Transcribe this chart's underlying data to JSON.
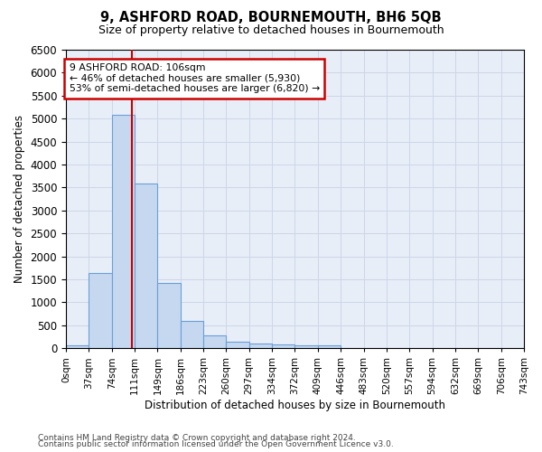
{
  "title": "9, ASHFORD ROAD, BOURNEMOUTH, BH6 5QB",
  "subtitle": "Size of property relative to detached houses in Bournemouth",
  "xlabel": "Distribution of detached houses by size in Bournemouth",
  "ylabel": "Number of detached properties",
  "bar_color": "#c5d8f0",
  "bar_edge_color": "#6a9fd8",
  "bin_labels": [
    "0sqm",
    "37sqm",
    "74sqm",
    "111sqm",
    "149sqm",
    "186sqm",
    "223sqm",
    "260sqm",
    "297sqm",
    "334sqm",
    "372sqm",
    "409sqm",
    "446sqm",
    "483sqm",
    "520sqm",
    "557sqm",
    "594sqm",
    "632sqm",
    "669sqm",
    "706sqm",
    "743sqm"
  ],
  "bar_heights": [
    70,
    1630,
    5080,
    3580,
    1420,
    590,
    290,
    145,
    110,
    75,
    60,
    55,
    0,
    0,
    0,
    0,
    0,
    0,
    0,
    0
  ],
  "ylim": [
    0,
    6500
  ],
  "yticks": [
    0,
    500,
    1000,
    1500,
    2000,
    2500,
    3000,
    3500,
    4000,
    4500,
    5000,
    5500,
    6000,
    6500
  ],
  "vline_sqm": 106,
  "bin_start_sqm": [
    0,
    37,
    74,
    111,
    149,
    186,
    223,
    260,
    297,
    334,
    372,
    409,
    446,
    483,
    520,
    557,
    594,
    632,
    669,
    706,
    743
  ],
  "annotation_title": "9 ASHFORD ROAD: 106sqm",
  "annotation_line1": "← 46% of detached houses are smaller (5,930)",
  "annotation_line2": "53% of semi-detached houses are larger (6,820) →",
  "annotation_box_color": "#ffffff",
  "annotation_box_edge": "#cc0000",
  "vline_color": "#cc0000",
  "grid_color": "#cdd6e8",
  "background_color": "#e8eef8",
  "footer1": "Contains HM Land Registry data © Crown copyright and database right 2024.",
  "footer2": "Contains public sector information licensed under the Open Government Licence v3.0."
}
